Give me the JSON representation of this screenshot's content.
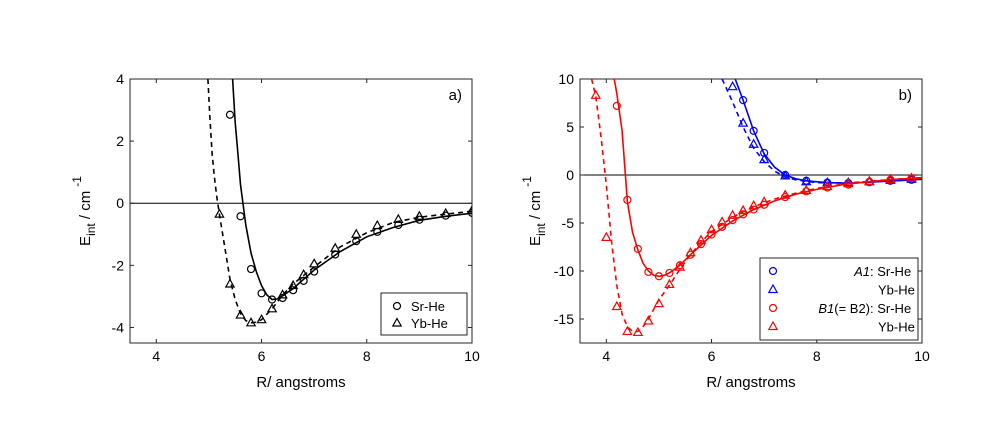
{
  "chart_data": [
    {
      "type": "line",
      "panel_label": "a)",
      "xlabel": "R/ angstroms",
      "ylabel": {
        "main": "E",
        "sub": "int",
        "unit": " / cm",
        "sup": "-1"
      },
      "xlim": [
        3.5,
        10
      ],
      "ylim": [
        -4.5,
        4
      ],
      "xticks": [
        4,
        6,
        8,
        10
      ],
      "yticks": [
        -4,
        -2,
        0,
        2,
        4
      ],
      "legend_position": "bottom-right",
      "series": [
        {
          "name": "Sr-He",
          "color": "#000000",
          "marker": "circle",
          "line": "solid",
          "curve": [
            [
              5.45,
              4.0
            ],
            [
              5.5,
              2.6
            ],
            [
              5.55,
              1.6
            ],
            [
              5.6,
              0.6
            ],
            [
              5.7,
              -0.7
            ],
            [
              5.8,
              -1.6
            ],
            [
              5.9,
              -2.2
            ],
            [
              6.0,
              -2.65
            ],
            [
              6.1,
              -2.95
            ],
            [
              6.2,
              -3.1
            ],
            [
              6.3,
              -3.08
            ],
            [
              6.4,
              -2.98
            ],
            [
              6.6,
              -2.75
            ],
            [
              6.8,
              -2.45
            ],
            [
              7.0,
              -2.15
            ],
            [
              7.5,
              -1.55
            ],
            [
              8.0,
              -1.08
            ],
            [
              8.5,
              -0.78
            ],
            [
              9.0,
              -0.55
            ],
            [
              9.5,
              -0.42
            ],
            [
              10.0,
              -0.32
            ]
          ],
          "points": [
            [
              5.4,
              2.85
            ],
            [
              5.6,
              -0.42
            ],
            [
              5.8,
              -2.12
            ],
            [
              6.0,
              -2.9
            ],
            [
              6.2,
              -3.1
            ],
            [
              6.4,
              -3.05
            ],
            [
              6.6,
              -2.8
            ],
            [
              6.8,
              -2.5
            ],
            [
              7.0,
              -2.2
            ],
            [
              7.4,
              -1.65
            ],
            [
              7.8,
              -1.22
            ],
            [
              8.2,
              -0.92
            ],
            [
              8.6,
              -0.7
            ],
            [
              9.0,
              -0.53
            ],
            [
              9.5,
              -0.4
            ],
            [
              10.0,
              -0.31
            ]
          ]
        },
        {
          "name": "Yb-He",
          "color": "#000000",
          "marker": "triangle",
          "line": "dashed",
          "curve": [
            [
              4.98,
              4.0
            ],
            [
              5.02,
              2.7
            ],
            [
              5.06,
              1.6
            ],
            [
              5.1,
              0.9
            ],
            [
              5.15,
              0.2
            ],
            [
              5.2,
              -0.35
            ],
            [
              5.3,
              -1.4
            ],
            [
              5.4,
              -2.45
            ],
            [
              5.5,
              -3.1
            ],
            [
              5.6,
              -3.55
            ],
            [
              5.7,
              -3.78
            ],
            [
              5.8,
              -3.85
            ],
            [
              5.9,
              -3.83
            ],
            [
              6.0,
              -3.75
            ],
            [
              6.2,
              -3.4
            ],
            [
              6.4,
              -2.95
            ],
            [
              6.6,
              -2.6
            ],
            [
              7.0,
              -2.05
            ],
            [
              7.5,
              -1.4
            ],
            [
              8.0,
              -0.95
            ],
            [
              8.5,
              -0.62
            ],
            [
              9.0,
              -0.45
            ],
            [
              9.5,
              -0.35
            ],
            [
              10.0,
              -0.26
            ]
          ],
          "points": [
            [
              5.2,
              -0.35
            ],
            [
              5.4,
              -2.6
            ],
            [
              5.6,
              -3.6
            ],
            [
              5.8,
              -3.85
            ],
            [
              6.0,
              -3.75
            ],
            [
              6.2,
              -3.4
            ],
            [
              6.4,
              -2.95
            ],
            [
              6.6,
              -2.65
            ],
            [
              6.8,
              -2.3
            ],
            [
              7.0,
              -1.95
            ],
            [
              7.4,
              -1.45
            ],
            [
              7.8,
              -1.0
            ],
            [
              8.2,
              -0.72
            ],
            [
              8.6,
              -0.52
            ],
            [
              9.0,
              -0.42
            ],
            [
              9.5,
              -0.33
            ],
            [
              10.0,
              -0.24
            ]
          ]
        }
      ]
    },
    {
      "type": "line",
      "panel_label": "b)",
      "xlabel": "R/ angstroms",
      "ylabel": {
        "main": "E",
        "sub": "int",
        "unit": " / cm",
        "sup": "-1"
      },
      "xlim": [
        3.5,
        10
      ],
      "ylim": [
        -17.5,
        10
      ],
      "xticks": [
        4,
        6,
        8,
        10
      ],
      "yticks": [
        -15,
        -10,
        -5,
        0,
        5,
        10
      ],
      "legend_position": "bottom-right",
      "series": [
        {
          "name": "Sr-He",
          "state": "A1",
          "color": "#0000ff",
          "marker": "circle",
          "line": "solid",
          "curve": [
            [
              6.45,
              10.0
            ],
            [
              6.6,
              7.8
            ],
            [
              6.8,
              4.6
            ],
            [
              7.0,
              2.2
            ],
            [
              7.2,
              0.8
            ],
            [
              7.4,
              0.0
            ],
            [
              7.6,
              -0.4
            ],
            [
              7.8,
              -0.6
            ],
            [
              8.2,
              -0.8
            ],
            [
              8.6,
              -0.85
            ],
            [
              9.0,
              -0.75
            ],
            [
              9.5,
              -0.6
            ],
            [
              10.0,
              -0.45
            ]
          ],
          "points": [
            [
              6.6,
              7.8
            ],
            [
              6.8,
              4.6
            ],
            [
              7.0,
              2.3
            ],
            [
              7.4,
              0.0
            ],
            [
              7.8,
              -0.6
            ],
            [
              8.2,
              -0.8
            ],
            [
              8.6,
              -0.85
            ],
            [
              9.0,
              -0.75
            ],
            [
              9.4,
              -0.6
            ],
            [
              9.8,
              -0.5
            ]
          ]
        },
        {
          "name": "Yb-He",
          "state": "A1",
          "color": "#0000ff",
          "marker": "triangle",
          "line": "dashed",
          "curve": [
            [
              6.2,
              10.0
            ],
            [
              6.4,
              7.6
            ],
            [
              6.6,
              5.0
            ],
            [
              6.8,
              2.8
            ],
            [
              7.0,
              1.4
            ],
            [
              7.2,
              0.4
            ],
            [
              7.4,
              -0.2
            ],
            [
              7.6,
              -0.5
            ],
            [
              8.0,
              -0.8
            ],
            [
              8.5,
              -0.82
            ],
            [
              9.0,
              -0.7
            ],
            [
              9.5,
              -0.55
            ],
            [
              10.0,
              -0.42
            ]
          ],
          "points": [
            [
              6.4,
              9.2
            ],
            [
              6.6,
              5.4
            ],
            [
              6.8,
              3.2
            ],
            [
              7.0,
              1.6
            ],
            [
              7.4,
              -0.1
            ],
            [
              7.8,
              -0.7
            ],
            [
              8.2,
              -0.8
            ],
            [
              8.6,
              -0.8
            ],
            [
              9.0,
              -0.7
            ],
            [
              9.4,
              -0.55
            ],
            [
              9.8,
              -0.45
            ]
          ]
        },
        {
          "name": "Sr-He",
          "state": "B1(= B2)",
          "color": "#ff0000",
          "marker": "circle",
          "line": "solid",
          "curve": [
            [
              4.15,
              10.0
            ],
            [
              4.2,
              8.5
            ],
            [
              4.3,
              4.6
            ],
            [
              4.4,
              -2.8
            ],
            [
              4.5,
              -6.0
            ],
            [
              4.6,
              -7.8
            ],
            [
              4.7,
              -9.2
            ],
            [
              4.8,
              -10.0
            ],
            [
              4.9,
              -10.45
            ],
            [
              5.0,
              -10.55
            ],
            [
              5.1,
              -10.45
            ],
            [
              5.2,
              -10.2
            ],
            [
              5.4,
              -9.4
            ],
            [
              5.6,
              -8.3
            ],
            [
              5.8,
              -7.3
            ],
            [
              6.0,
              -6.3
            ],
            [
              6.4,
              -4.8
            ],
            [
              6.8,
              -3.6
            ],
            [
              7.2,
              -2.7
            ],
            [
              7.6,
              -2.0
            ],
            [
              8.0,
              -1.5
            ],
            [
              8.5,
              -1.0
            ],
            [
              9.0,
              -0.7
            ],
            [
              9.5,
              -0.45
            ],
            [
              10.0,
              -0.3
            ]
          ],
          "points": [
            [
              4.2,
              7.2
            ],
            [
              4.4,
              -2.6
            ],
            [
              4.6,
              -7.7
            ],
            [
              4.8,
              -10.1
            ],
            [
              5.0,
              -10.55
            ],
            [
              5.2,
              -10.2
            ],
            [
              5.4,
              -9.4
            ],
            [
              5.6,
              -8.3
            ],
            [
              5.8,
              -7.2
            ],
            [
              6.0,
              -6.2
            ],
            [
              6.2,
              -5.4
            ],
            [
              6.4,
              -4.7
            ],
            [
              6.6,
              -4.1
            ],
            [
              6.8,
              -3.6
            ],
            [
              7.0,
              -3.1
            ],
            [
              7.4,
              -2.3
            ],
            [
              7.8,
              -1.7
            ],
            [
              8.2,
              -1.3
            ],
            [
              8.6,
              -1.0
            ],
            [
              9.0,
              -0.7
            ],
            [
              9.4,
              -0.5
            ],
            [
              9.8,
              -0.35
            ]
          ]
        },
        {
          "name": "Yb-He",
          "state": "B1(= B2)",
          "color": "#ff0000",
          "marker": "triangle",
          "line": "dashed",
          "curve": [
            [
              3.72,
              10.0
            ],
            [
              3.8,
              8.2
            ],
            [
              3.9,
              4.0
            ],
            [
              4.0,
              -1.0
            ],
            [
              4.1,
              -7.0
            ],
            [
              4.2,
              -11.5
            ],
            [
              4.3,
              -14.5
            ],
            [
              4.4,
              -15.8
            ],
            [
              4.5,
              -16.3
            ],
            [
              4.6,
              -16.3
            ],
            [
              4.7,
              -15.8
            ],
            [
              4.8,
              -15.0
            ],
            [
              5.0,
              -13.0
            ],
            [
              5.2,
              -11.5
            ],
            [
              5.4,
              -9.8
            ],
            [
              5.6,
              -8.3
            ],
            [
              5.8,
              -7.0
            ],
            [
              6.0,
              -5.9
            ],
            [
              6.4,
              -4.4
            ],
            [
              6.8,
              -3.3
            ],
            [
              7.2,
              -2.5
            ],
            [
              7.6,
              -1.9
            ],
            [
              8.0,
              -1.4
            ],
            [
              8.5,
              -0.95
            ],
            [
              9.0,
              -0.65
            ],
            [
              9.5,
              -0.42
            ],
            [
              10.0,
              -0.28
            ]
          ],
          "points": [
            [
              3.8,
              8.3
            ],
            [
              4.0,
              -6.5
            ],
            [
              4.2,
              -13.7
            ],
            [
              4.4,
              -16.3
            ],
            [
              4.6,
              -16.4
            ],
            [
              4.8,
              -15.2
            ],
            [
              5.0,
              -13.4
            ],
            [
              5.2,
              -11.4
            ],
            [
              5.4,
              -9.6
            ],
            [
              5.6,
              -8.1
            ],
            [
              5.8,
              -6.8
            ],
            [
              6.0,
              -5.7
            ],
            [
              6.2,
              -4.9
            ],
            [
              6.4,
              -4.2
            ],
            [
              6.6,
              -3.7
            ],
            [
              6.8,
              -3.2
            ],
            [
              7.0,
              -2.8
            ],
            [
              7.4,
              -2.1
            ],
            [
              7.8,
              -1.6
            ],
            [
              8.2,
              -1.2
            ],
            [
              8.6,
              -0.9
            ],
            [
              9.0,
              -0.65
            ],
            [
              9.4,
              -0.45
            ],
            [
              9.8,
              -0.32
            ]
          ]
        }
      ]
    }
  ]
}
